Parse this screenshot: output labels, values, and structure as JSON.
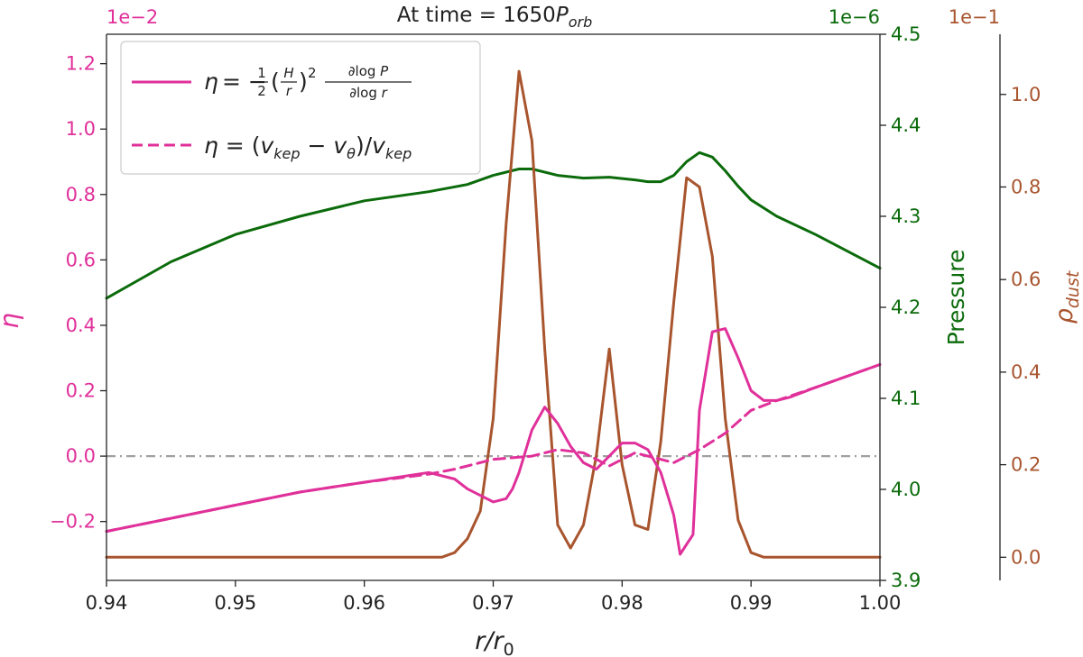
{
  "chart_data": {
    "type": "line",
    "title": "At time = 1650P_orb",
    "title_parts": {
      "prefix": "At time = 1650",
      "symbol": "P",
      "subscript": "orb"
    },
    "colors": {
      "eta": "#e0309a",
      "pressure": "#0b6b0b",
      "dust": "#a8552e",
      "zero_line": "#a0a0a0"
    },
    "x_axis": {
      "label_var": "r/r",
      "label_sub": "0",
      "range": [
        0.94,
        1.0
      ],
      "ticks": [
        0.94,
        0.95,
        0.96,
        0.97,
        0.98,
        0.99,
        1.0
      ],
      "tick_labels": [
        "0.94",
        "0.95",
        "0.96",
        "0.97",
        "0.98",
        "0.99",
        "1.00"
      ]
    },
    "y_left": {
      "label": "η",
      "scale_label": "1e−2",
      "range": [
        -0.38,
        1.29
      ],
      "ticks": [
        -0.2,
        0.0,
        0.2,
        0.4,
        0.6,
        0.8,
        1.0,
        1.2
      ],
      "tick_labels": [
        "−0.2",
        "0.0",
        "0.2",
        "0.4",
        "0.6",
        "0.8",
        "1.0",
        "1.2"
      ]
    },
    "y_pressure": {
      "label": "Pressure",
      "scale_label": "1e−6",
      "range": [
        3.9,
        4.5
      ],
      "ticks": [
        3.9,
        4.0,
        4.1,
        4.2,
        4.3,
        4.4,
        4.5
      ],
      "tick_labels": [
        "3.9",
        "4.0",
        "4.1",
        "4.2",
        "4.3",
        "4.4",
        "4.5"
      ]
    },
    "y_dust": {
      "label_var": "ρ",
      "label_sub": "dust",
      "scale_label": "1e−1",
      "range": [
        -0.05,
        1.13
      ],
      "ticks": [
        0.0,
        0.2,
        0.4,
        0.6,
        0.8,
        1.0
      ],
      "tick_labels": [
        "0.0",
        "0.2",
        "0.4",
        "0.6",
        "0.8",
        "1.0"
      ]
    },
    "grid": false,
    "legend_position": "top-left",
    "legend": [
      {
        "series": "eta_pressure",
        "style": "solid",
        "label": "η = −½(H/r)² ∂log P/∂log r"
      },
      {
        "series": "eta_velocity",
        "style": "dashed",
        "label": "η = (v_kep − v_θ)/v_kep"
      }
    ],
    "reference_line": {
      "axis": "left",
      "y": 0.0,
      "style": "dash-dot"
    },
    "series": [
      {
        "id": "eta_pressure",
        "axis": "left",
        "color_key": "eta",
        "style": "solid",
        "x": [
          0.94,
          0.945,
          0.95,
          0.955,
          0.96,
          0.965,
          0.967,
          0.968,
          0.969,
          0.97,
          0.971,
          0.9715,
          0.972,
          0.973,
          0.974,
          0.975,
          0.976,
          0.977,
          0.978,
          0.979,
          0.98,
          0.981,
          0.982,
          0.983,
          0.984,
          0.9845,
          0.9855,
          0.986,
          0.987,
          0.988,
          0.989,
          0.99,
          0.991,
          0.992,
          0.993,
          0.995,
          1.0
        ],
        "y": [
          -0.23,
          -0.19,
          -0.15,
          -0.11,
          -0.08,
          -0.05,
          -0.07,
          -0.1,
          -0.12,
          -0.14,
          -0.13,
          -0.1,
          -0.05,
          0.08,
          0.15,
          0.1,
          0.03,
          -0.02,
          -0.04,
          0.0,
          0.04,
          0.04,
          0.02,
          -0.05,
          -0.18,
          -0.3,
          -0.24,
          0.14,
          0.38,
          0.39,
          0.3,
          0.2,
          0.17,
          0.17,
          0.18,
          0.21,
          0.28
        ]
      },
      {
        "id": "eta_velocity",
        "axis": "left",
        "color_key": "eta",
        "style": "dashed",
        "x": [
          0.94,
          0.945,
          0.95,
          0.955,
          0.96,
          0.965,
          0.967,
          0.97,
          0.973,
          0.975,
          0.977,
          0.978,
          0.979,
          0.98,
          0.981,
          0.982,
          0.983,
          0.984,
          0.986,
          0.988,
          0.99,
          0.992,
          0.995,
          1.0
        ],
        "y": [
          -0.23,
          -0.19,
          -0.15,
          -0.11,
          -0.08,
          -0.055,
          -0.04,
          -0.01,
          0.0,
          0.02,
          0.01,
          -0.01,
          -0.03,
          -0.01,
          0.01,
          0.0,
          -0.01,
          -0.02,
          0.02,
          0.07,
          0.14,
          0.17,
          0.21,
          0.28
        ]
      },
      {
        "id": "pressure",
        "axis": "pressure",
        "color_key": "pressure",
        "style": "solid",
        "x": [
          0.94,
          0.945,
          0.95,
          0.955,
          0.96,
          0.965,
          0.968,
          0.97,
          0.972,
          0.973,
          0.975,
          0.977,
          0.979,
          0.981,
          0.982,
          0.983,
          0.984,
          0.985,
          0.986,
          0.987,
          0.988,
          0.989,
          0.99,
          0.992,
          0.995,
          1.0
        ],
        "y": [
          4.21,
          4.25,
          4.28,
          4.3,
          4.317,
          4.327,
          4.335,
          4.345,
          4.352,
          4.352,
          4.345,
          4.342,
          4.343,
          4.34,
          4.338,
          4.338,
          4.345,
          4.36,
          4.37,
          4.365,
          4.35,
          4.333,
          4.318,
          4.3,
          4.28,
          4.243
        ]
      },
      {
        "id": "dust",
        "axis": "dust",
        "color_key": "dust",
        "style": "solid",
        "x": [
          0.94,
          0.966,
          0.967,
          0.968,
          0.969,
          0.97,
          0.971,
          0.972,
          0.973,
          0.974,
          0.975,
          0.976,
          0.977,
          0.978,
          0.979,
          0.98,
          0.981,
          0.982,
          0.983,
          0.984,
          0.985,
          0.986,
          0.987,
          0.988,
          0.989,
          0.99,
          0.991,
          1.0
        ],
        "y": [
          0.0,
          0.0,
          0.01,
          0.04,
          0.1,
          0.3,
          0.72,
          1.05,
          0.9,
          0.45,
          0.07,
          0.02,
          0.07,
          0.22,
          0.45,
          0.2,
          0.07,
          0.06,
          0.25,
          0.55,
          0.82,
          0.8,
          0.65,
          0.3,
          0.08,
          0.01,
          0.0,
          0.0
        ]
      }
    ]
  }
}
